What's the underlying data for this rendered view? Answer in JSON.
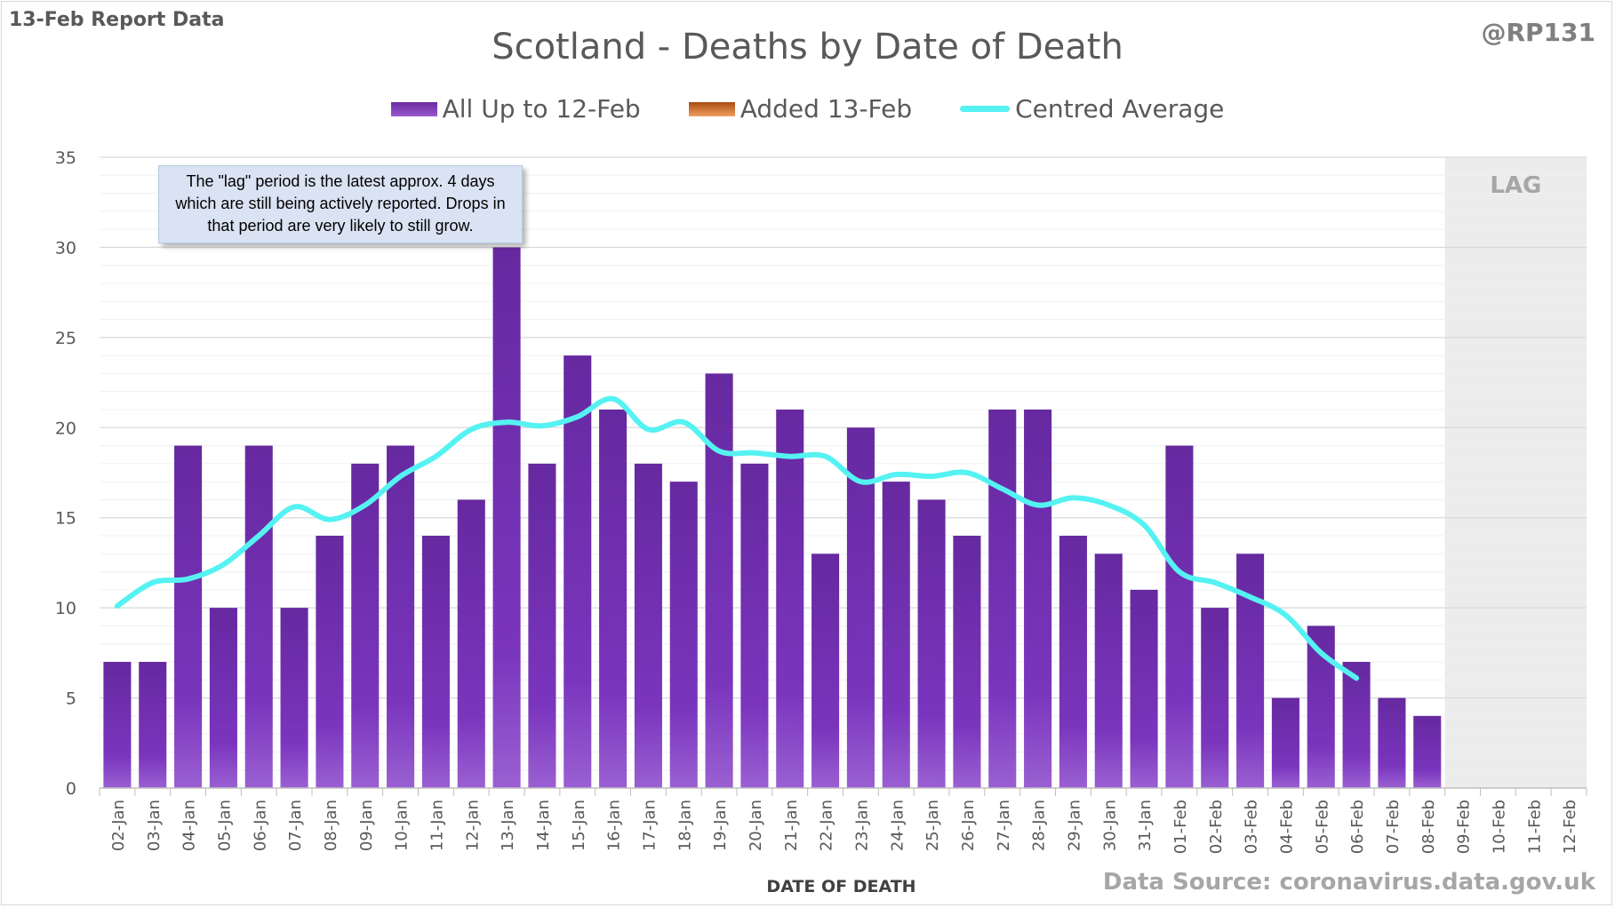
{
  "header": {
    "report_label": "13-Feb Report Data",
    "author": "@RP131",
    "source": "Data Source: coronavirus.data.gov.uk"
  },
  "annotation": "The \"lag\" period is the latest approx. 4 days which are still being actively reported.  Drops in that period are very likely to still grow.",
  "colors": {
    "bar": "#7030a0",
    "added": "#c55a11",
    "average": "#66ffff",
    "lag_shade": "#ececec",
    "grid": "#d9d9d9"
  },
  "chart_data": {
    "type": "bar",
    "title": "Scotland - Deaths by Date of Death",
    "xlabel": "DATE OF DEATH",
    "ylabel": "",
    "ylim": [
      0,
      35
    ],
    "yticks": [
      0,
      5,
      10,
      15,
      20,
      25,
      30,
      35
    ],
    "grid": true,
    "legend_position": "top-center",
    "lag_label": "LAG",
    "lag_start": "09-Feb",
    "categories": [
      "02-Jan",
      "03-Jan",
      "04-Jan",
      "05-Jan",
      "06-Jan",
      "07-Jan",
      "08-Jan",
      "09-Jan",
      "10-Jan",
      "11-Jan",
      "12-Jan",
      "13-Jan",
      "14-Jan",
      "15-Jan",
      "16-Jan",
      "17-Jan",
      "18-Jan",
      "19-Jan",
      "20-Jan",
      "21-Jan",
      "22-Jan",
      "23-Jan",
      "24-Jan",
      "25-Jan",
      "26-Jan",
      "27-Jan",
      "28-Jan",
      "29-Jan",
      "30-Jan",
      "31-Jan",
      "01-Feb",
      "02-Feb",
      "03-Feb",
      "04-Feb",
      "05-Feb",
      "06-Feb",
      "07-Feb",
      "08-Feb",
      "09-Feb",
      "10-Feb",
      "11-Feb",
      "12-Feb"
    ],
    "series": [
      {
        "name": "All Up to 12-Feb",
        "kind": "bar",
        "values": [
          7,
          7,
          19,
          10,
          19,
          10,
          14,
          18,
          19,
          14,
          16,
          30,
          18,
          24,
          21,
          18,
          17,
          23,
          18,
          21,
          13,
          20,
          17,
          16,
          14,
          21,
          21,
          14,
          13,
          11,
          19,
          10,
          13,
          5,
          9,
          7,
          5,
          4,
          0,
          0,
          0,
          0
        ]
      },
      {
        "name": "Added 13-Feb",
        "kind": "bar",
        "values": [
          0,
          0,
          0,
          0,
          0,
          0,
          0,
          0,
          0,
          0,
          0,
          0,
          0,
          0,
          0,
          0,
          0,
          0,
          0,
          0,
          0,
          0,
          0,
          0,
          0,
          0,
          0,
          0,
          0,
          0,
          0,
          0,
          0,
          0,
          0,
          0,
          0,
          0,
          0,
          0,
          0,
          0
        ]
      },
      {
        "name": "Centred Average",
        "kind": "line",
        "values": [
          10.1,
          11.4,
          11.6,
          12.4,
          14.0,
          15.6,
          14.9,
          15.7,
          17.3,
          18.4,
          19.9,
          20.3,
          20.1,
          20.6,
          21.6,
          19.9,
          20.3,
          18.7,
          18.6,
          18.4,
          18.4,
          17.0,
          17.4,
          17.3,
          17.5,
          16.6,
          15.7,
          16.1,
          15.7,
          14.6,
          12.0,
          11.4,
          10.6,
          9.6,
          7.5,
          6.1,
          null,
          null,
          null,
          null,
          null,
          null
        ]
      }
    ]
  }
}
